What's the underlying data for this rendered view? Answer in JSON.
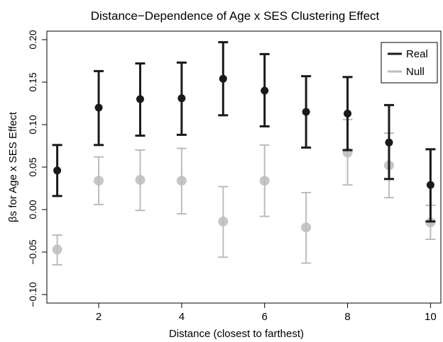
{
  "chart_data": {
    "type": "scatter",
    "title": "Distance−Dependence of Age x SES Clustering Effect",
    "xlabel": "Distance (closest to farthest)",
    "ylabel": "βs for Age x SES Effect",
    "xlim": [
      0.75,
      10.25
    ],
    "ylim": [
      -0.11,
      0.21
    ],
    "xticks": [
      2,
      4,
      6,
      8,
      10
    ],
    "xtick_labels": [
      "2",
      "4",
      "6",
      "8",
      "10"
    ],
    "yticks": [
      -0.1,
      -0.05,
      0.0,
      0.05,
      0.1,
      0.15,
      0.2
    ],
    "ytick_labels": [
      "−0.10",
      "−0.05",
      "0.00",
      "0.05",
      "0.10",
      "0.15",
      "0.20"
    ],
    "grid": false,
    "legend_position": "top-right",
    "series": [
      {
        "name": "Real",
        "color": "#1a1a1a",
        "points": [
          {
            "x": 1,
            "y": 0.046,
            "lo": 0.016,
            "hi": 0.076
          },
          {
            "x": 2,
            "y": 0.12,
            "lo": 0.076,
            "hi": 0.163
          },
          {
            "x": 3,
            "y": 0.13,
            "lo": 0.087,
            "hi": 0.172
          },
          {
            "x": 4,
            "y": 0.131,
            "lo": 0.088,
            "hi": 0.173
          },
          {
            "x": 5,
            "y": 0.154,
            "lo": 0.111,
            "hi": 0.197
          },
          {
            "x": 6,
            "y": 0.14,
            "lo": 0.098,
            "hi": 0.183
          },
          {
            "x": 7,
            "y": 0.115,
            "lo": 0.073,
            "hi": 0.157
          },
          {
            "x": 8,
            "y": 0.113,
            "lo": 0.07,
            "hi": 0.156
          },
          {
            "x": 9,
            "y": 0.079,
            "lo": 0.036,
            "hi": 0.123
          },
          {
            "x": 10,
            "y": 0.029,
            "lo": -0.014,
            "hi": 0.071
          }
        ]
      },
      {
        "name": "Null",
        "color": "#bcbcbc",
        "points": [
          {
            "x": 1,
            "y": -0.047,
            "lo": -0.065,
            "hi": -0.03
          },
          {
            "x": 2,
            "y": 0.034,
            "lo": 0.006,
            "hi": 0.062
          },
          {
            "x": 3,
            "y": 0.035,
            "lo": -0.001,
            "hi": 0.07
          },
          {
            "x": 4,
            "y": 0.034,
            "lo": -0.005,
            "hi": 0.072
          },
          {
            "x": 5,
            "y": -0.014,
            "lo": -0.056,
            "hi": 0.027
          },
          {
            "x": 6,
            "y": 0.034,
            "lo": -0.008,
            "hi": 0.076
          },
          {
            "x": 7,
            "y": -0.021,
            "lo": -0.063,
            "hi": 0.02
          },
          {
            "x": 8,
            "y": 0.067,
            "lo": 0.029,
            "hi": 0.106
          },
          {
            "x": 9,
            "y": 0.052,
            "lo": 0.014,
            "hi": 0.09
          },
          {
            "x": 10,
            "y": -0.015,
            "lo": -0.035,
            "hi": 0.005
          }
        ]
      }
    ]
  }
}
